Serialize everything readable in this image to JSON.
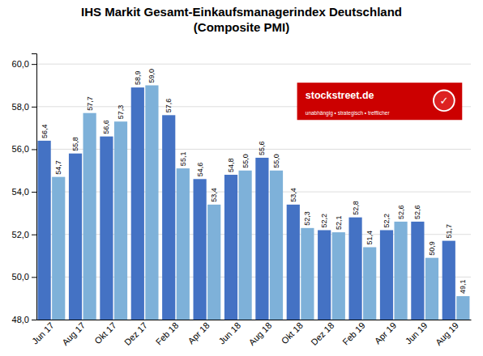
{
  "chart_data": {
    "type": "bar",
    "title": "IHS Markit Gesamt-Einkaufsmanagerindex Deutschland",
    "subtitle": "(Composite PMI)",
    "categories": [
      "Jun 17",
      "Aug 17",
      "Okt 17",
      "Dez 17",
      "Feb 18",
      "Apr 18",
      "Jun 18",
      "Aug 18",
      "Okt 18",
      "Dez 18",
      "Feb 19",
      "Apr 19",
      "Jun 19",
      "Aug 19"
    ],
    "series": [
      {
        "color": "#4472C4",
        "values": [
          56.4,
          55.8,
          56.6,
          58.9,
          57.6,
          54.6,
          54.8,
          55.6,
          53.4,
          52.2,
          52.8,
          52.2,
          52.6,
          51.7
        ],
        "value_labels": [
          "56,4",
          "55,8",
          "56,6",
          "58,9",
          "57,6",
          "54,6",
          "54,8",
          "55,6",
          "53,4",
          "52,2",
          "52,8",
          "52,2",
          "52,6",
          "51,7"
        ]
      },
      {
        "color": "#7EB1D9",
        "values": [
          54.7,
          57.7,
          57.3,
          59.0,
          55.1,
          53.4,
          55.0,
          55.0,
          52.3,
          52.1,
          51.4,
          52.6,
          50.9,
          49.1
        ],
        "value_labels": [
          "54,7",
          "57,7",
          "57,3",
          "59,0",
          "55,1",
          "53,4",
          "55,0",
          "55,0",
          "52,3",
          "52,1",
          "51,4",
          "52,6",
          "50,9",
          "49,1"
        ]
      }
    ],
    "ylim": [
      48.0,
      60.5
    ],
    "yticks": [
      {
        "value": 48.0,
        "label": "48,0"
      },
      {
        "value": 50.0,
        "label": "50,0"
      },
      {
        "value": 52.0,
        "label": "52,0"
      },
      {
        "value": 54.0,
        "label": "54,0"
      },
      {
        "value": 56.0,
        "label": "56,0"
      },
      {
        "value": 58.0,
        "label": "58,0"
      },
      {
        "value": 60.0,
        "label": "60,0"
      }
    ],
    "grid": true,
    "data_labels": true,
    "annotations": [
      "stockstreet.de",
      "unabhängig • strategisch • trefflicher",
      "✓"
    ]
  }
}
